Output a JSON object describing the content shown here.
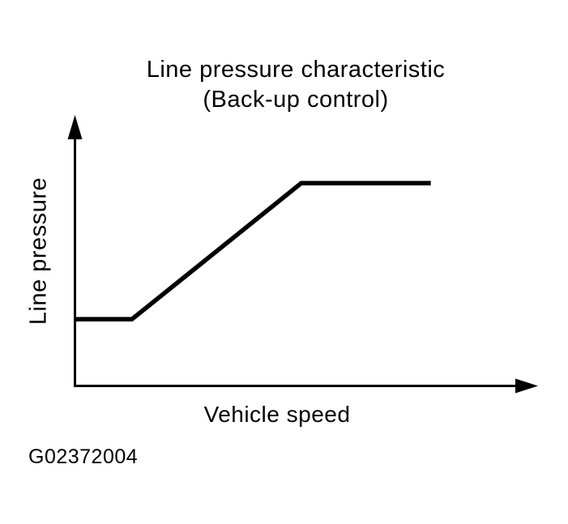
{
  "colors": {
    "ink": "#000000",
    "background": "#ffffff"
  },
  "figure_id": "G02372004",
  "chart_data": {
    "type": "line",
    "title": "Line pressure characteristic",
    "subtitle": "(Back-up control)",
    "xlabel": "Vehicle speed",
    "ylabel": "Line pressure",
    "x_ticks": [],
    "y_ticks": [],
    "grid": false,
    "legend": false,
    "axes_style": "arrowed axes, no numeric scale (qualitative characteristic curve)",
    "xlim": [
      0,
      1
    ],
    "ylim": [
      0,
      1
    ],
    "series": [
      {
        "name": "Line pressure (back-up control)",
        "shape": "constant low, linear rise, constant high (saturation)",
        "points": [
          [
            0.0,
            0.245
          ],
          [
            0.124,
            0.245
          ],
          [
            0.49,
            0.748
          ],
          [
            0.77,
            0.748
          ]
        ]
      }
    ]
  }
}
